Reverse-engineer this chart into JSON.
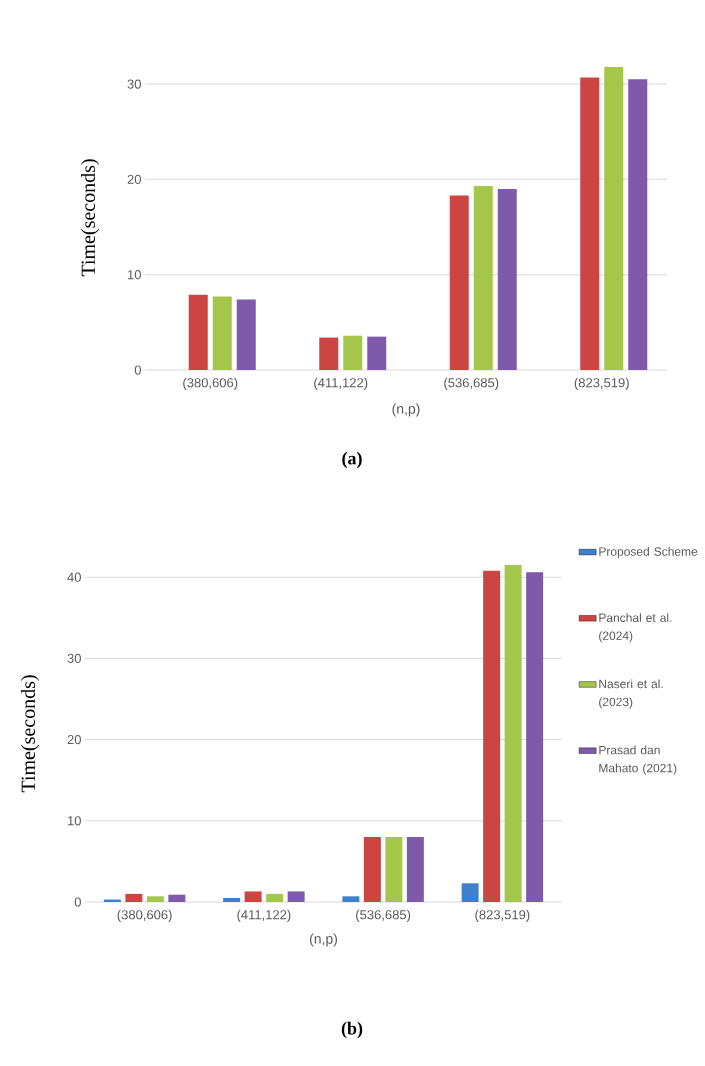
{
  "chart_data": [
    {
      "type": "bar",
      "xlabel": "(n,p)",
      "ylabel": "Time(seconds)",
      "categories": [
        "(380,606)",
        "(411,122)",
        "(536,685)",
        "(823,519)"
      ],
      "series": [
        {
          "color": "#3f7fcd",
          "values": [
            null,
            null,
            null,
            null
          ]
        },
        {
          "color": "#cd4542",
          "values": [
            7.9,
            3.4,
            18.3,
            30.7
          ]
        },
        {
          "color": "#a3c64b",
          "values": [
            7.7,
            3.6,
            19.3,
            31.8
          ]
        },
        {
          "color": "#7f5aab",
          "values": [
            7.4,
            3.5,
            19.0,
            30.5
          ]
        }
      ],
      "ylim": [
        0,
        32
      ],
      "yticks": [
        0,
        10,
        20,
        30
      ],
      "grid": "y",
      "annotations": [
        "**(a)**"
      ]
    },
    {
      "type": "bar",
      "xlabel": "(n,p)",
      "ylabel": "Time(seconds)",
      "categories": [
        "(380,606)",
        "(411,122)",
        "(536,685)",
        "(823,519)"
      ],
      "series": [
        {
          "name": "Proposed Scheme",
          "color": "#3f7fcd",
          "values": [
            0.3,
            0.5,
            0.7,
            2.3
          ]
        },
        {
          "name": "Panchal et al. (2024)",
          "color": "#cd4542",
          "values": [
            1.0,
            1.3,
            8.0,
            40.8
          ]
        },
        {
          "name": "Naseri et al. (2023)",
          "color": "#a3c64b",
          "values": [
            0.7,
            1.0,
            8.0,
            41.5
          ]
        },
        {
          "name": "Prasad dan Mahato (2021)",
          "color": "#7f5aab",
          "values": [
            0.9,
            1.3,
            8.0,
            40.6
          ]
        }
      ],
      "ylim": [
        0,
        41.5
      ],
      "yticks": [
        0,
        10,
        20,
        30,
        40
      ],
      "grid": "y",
      "legend": "right",
      "annotations": [
        "**(b)**"
      ]
    }
  ]
}
